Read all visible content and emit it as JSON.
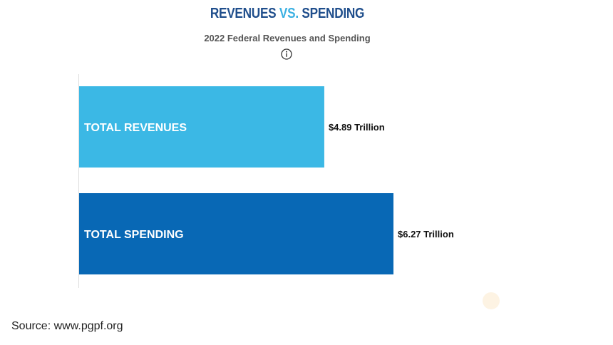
{
  "chart_data": {
    "type": "bar",
    "orientation": "horizontal",
    "title": {
      "part1": "REVENUES ",
      "part2": "VS.",
      "part3": " SPENDING"
    },
    "subtitle": "2022 Federal Revenues and Spending",
    "categories": [
      "TOTAL REVENUES",
      "TOTAL SPENDING"
    ],
    "values": [
      4.89,
      6.27
    ],
    "value_labels": [
      "$4.89 Trillion",
      "$6.27 Trillion"
    ],
    "units": "Trillion",
    "xlim": [
      0,
      6.27
    ],
    "grid": false,
    "colors": [
      "#3bb8e5",
      "#0868b5"
    ],
    "title_colors": {
      "main": "#1f4e8c",
      "accent": "#3bb0e2"
    }
  },
  "icons": {
    "info": "info-circle-icon"
  },
  "footer": {
    "source": "Source: www.pgpf.org"
  }
}
